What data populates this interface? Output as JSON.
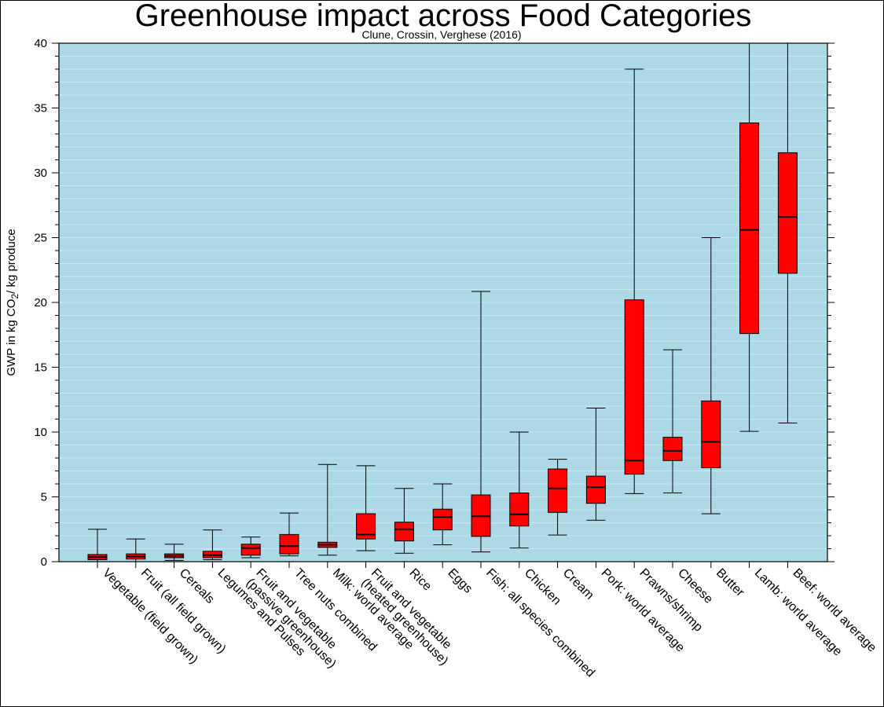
{
  "chart_data": {
    "type": "boxplot",
    "title": "Greenhouse impact across Food Categories",
    "subtitle": "Clune, Crossin, Verghese (2016)",
    "ylabel_main": "GWP in kg CO",
    "ylabel_sub": "2",
    "ylabel_end": "/ kg produce",
    "ylim": [
      0,
      40
    ],
    "yticks": [
      0,
      5,
      10,
      15,
      20,
      25,
      30,
      35,
      40
    ],
    "grid": true,
    "colors": {
      "plot_bg": "#add8e6",
      "box_fill": "#ff0000",
      "grid": "#d6ecf3"
    },
    "categories": [
      {
        "label": "Vegetable (field grown)",
        "min": 0.0,
        "q1": 0.15,
        "median": 0.35,
        "q3": 0.55,
        "max": 2.5
      },
      {
        "label": "Fruit (all field grown)",
        "min": 0.0,
        "q1": 0.2,
        "median": 0.4,
        "q3": 0.6,
        "max": 1.75
      },
      {
        "label": "Cereals",
        "min": 0.1,
        "q1": 0.3,
        "median": 0.45,
        "q3": 0.6,
        "max": 1.35
      },
      {
        "label": "Legumes and Pulses",
        "min": 0.15,
        "q1": 0.3,
        "median": 0.5,
        "q3": 0.8,
        "max": 2.45
      },
      {
        "label": "Fruit and vegetable\n(passive greenhouse)",
        "min": 0.3,
        "q1": 0.5,
        "median": 1.05,
        "q3": 1.35,
        "max": 1.9
      },
      {
        "label": "Tree nuts combined",
        "min": 0.45,
        "q1": 0.6,
        "median": 1.2,
        "q3": 2.1,
        "max": 3.75
      },
      {
        "label": "Milk: world average",
        "min": 0.5,
        "q1": 1.1,
        "median": 1.3,
        "q3": 1.5,
        "max": 7.5
      },
      {
        "label": "Fruit and vegetable\n(heated greenhouse)",
        "min": 0.85,
        "q1": 1.75,
        "median": 2.1,
        "q3": 3.7,
        "max": 7.4
      },
      {
        "label": "Rice",
        "min": 0.65,
        "q1": 1.6,
        "median": 2.5,
        "q3": 3.05,
        "max": 5.65
      },
      {
        "label": "Eggs",
        "min": 1.3,
        "q1": 2.45,
        "median": 3.45,
        "q3": 4.05,
        "max": 6.0
      },
      {
        "label": "Fish: all species combined",
        "min": 0.75,
        "q1": 1.95,
        "median": 3.5,
        "q3": 5.15,
        "max": 20.85
      },
      {
        "label": "Chicken",
        "min": 1.05,
        "q1": 2.75,
        "median": 3.65,
        "q3": 5.3,
        "max": 10.0
      },
      {
        "label": "Cream",
        "min": 2.05,
        "q1": 3.8,
        "median": 5.65,
        "q3": 7.15,
        "max": 7.9
      },
      {
        "label": "Pork: world average",
        "min": 3.2,
        "q1": 4.5,
        "median": 5.75,
        "q3": 6.6,
        "max": 11.85
      },
      {
        "label": "Prawns/shrimp",
        "min": 5.25,
        "q1": 6.75,
        "median": 7.8,
        "q3": 20.2,
        "max": 38.0
      },
      {
        "label": "Cheese",
        "min": 5.3,
        "q1": 7.8,
        "median": 8.55,
        "q3": 9.6,
        "max": 16.35
      },
      {
        "label": "Butter",
        "min": 3.7,
        "q1": 7.25,
        "median": 9.25,
        "q3": 12.4,
        "max": 25.0
      },
      {
        "label": "Lamb: world average",
        "min": 10.05,
        "q1": 17.6,
        "median": 25.6,
        "q3": 33.85,
        "max": 40.0
      },
      {
        "label": "Beef: world average",
        "min": 10.7,
        "q1": 22.25,
        "median": 26.6,
        "q3": 31.55,
        "max": 40.0
      }
    ]
  }
}
